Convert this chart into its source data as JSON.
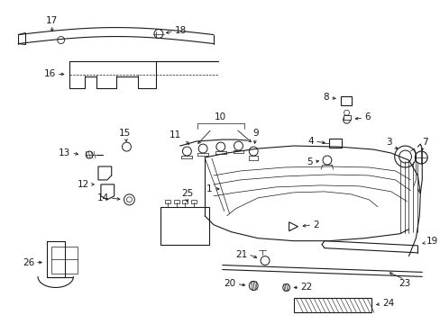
{
  "bg_color": "#ffffff",
  "line_color": "#1a1a1a",
  "label_fontsize": 7,
  "figsize": [
    4.89,
    3.6
  ],
  "dpi": 100
}
